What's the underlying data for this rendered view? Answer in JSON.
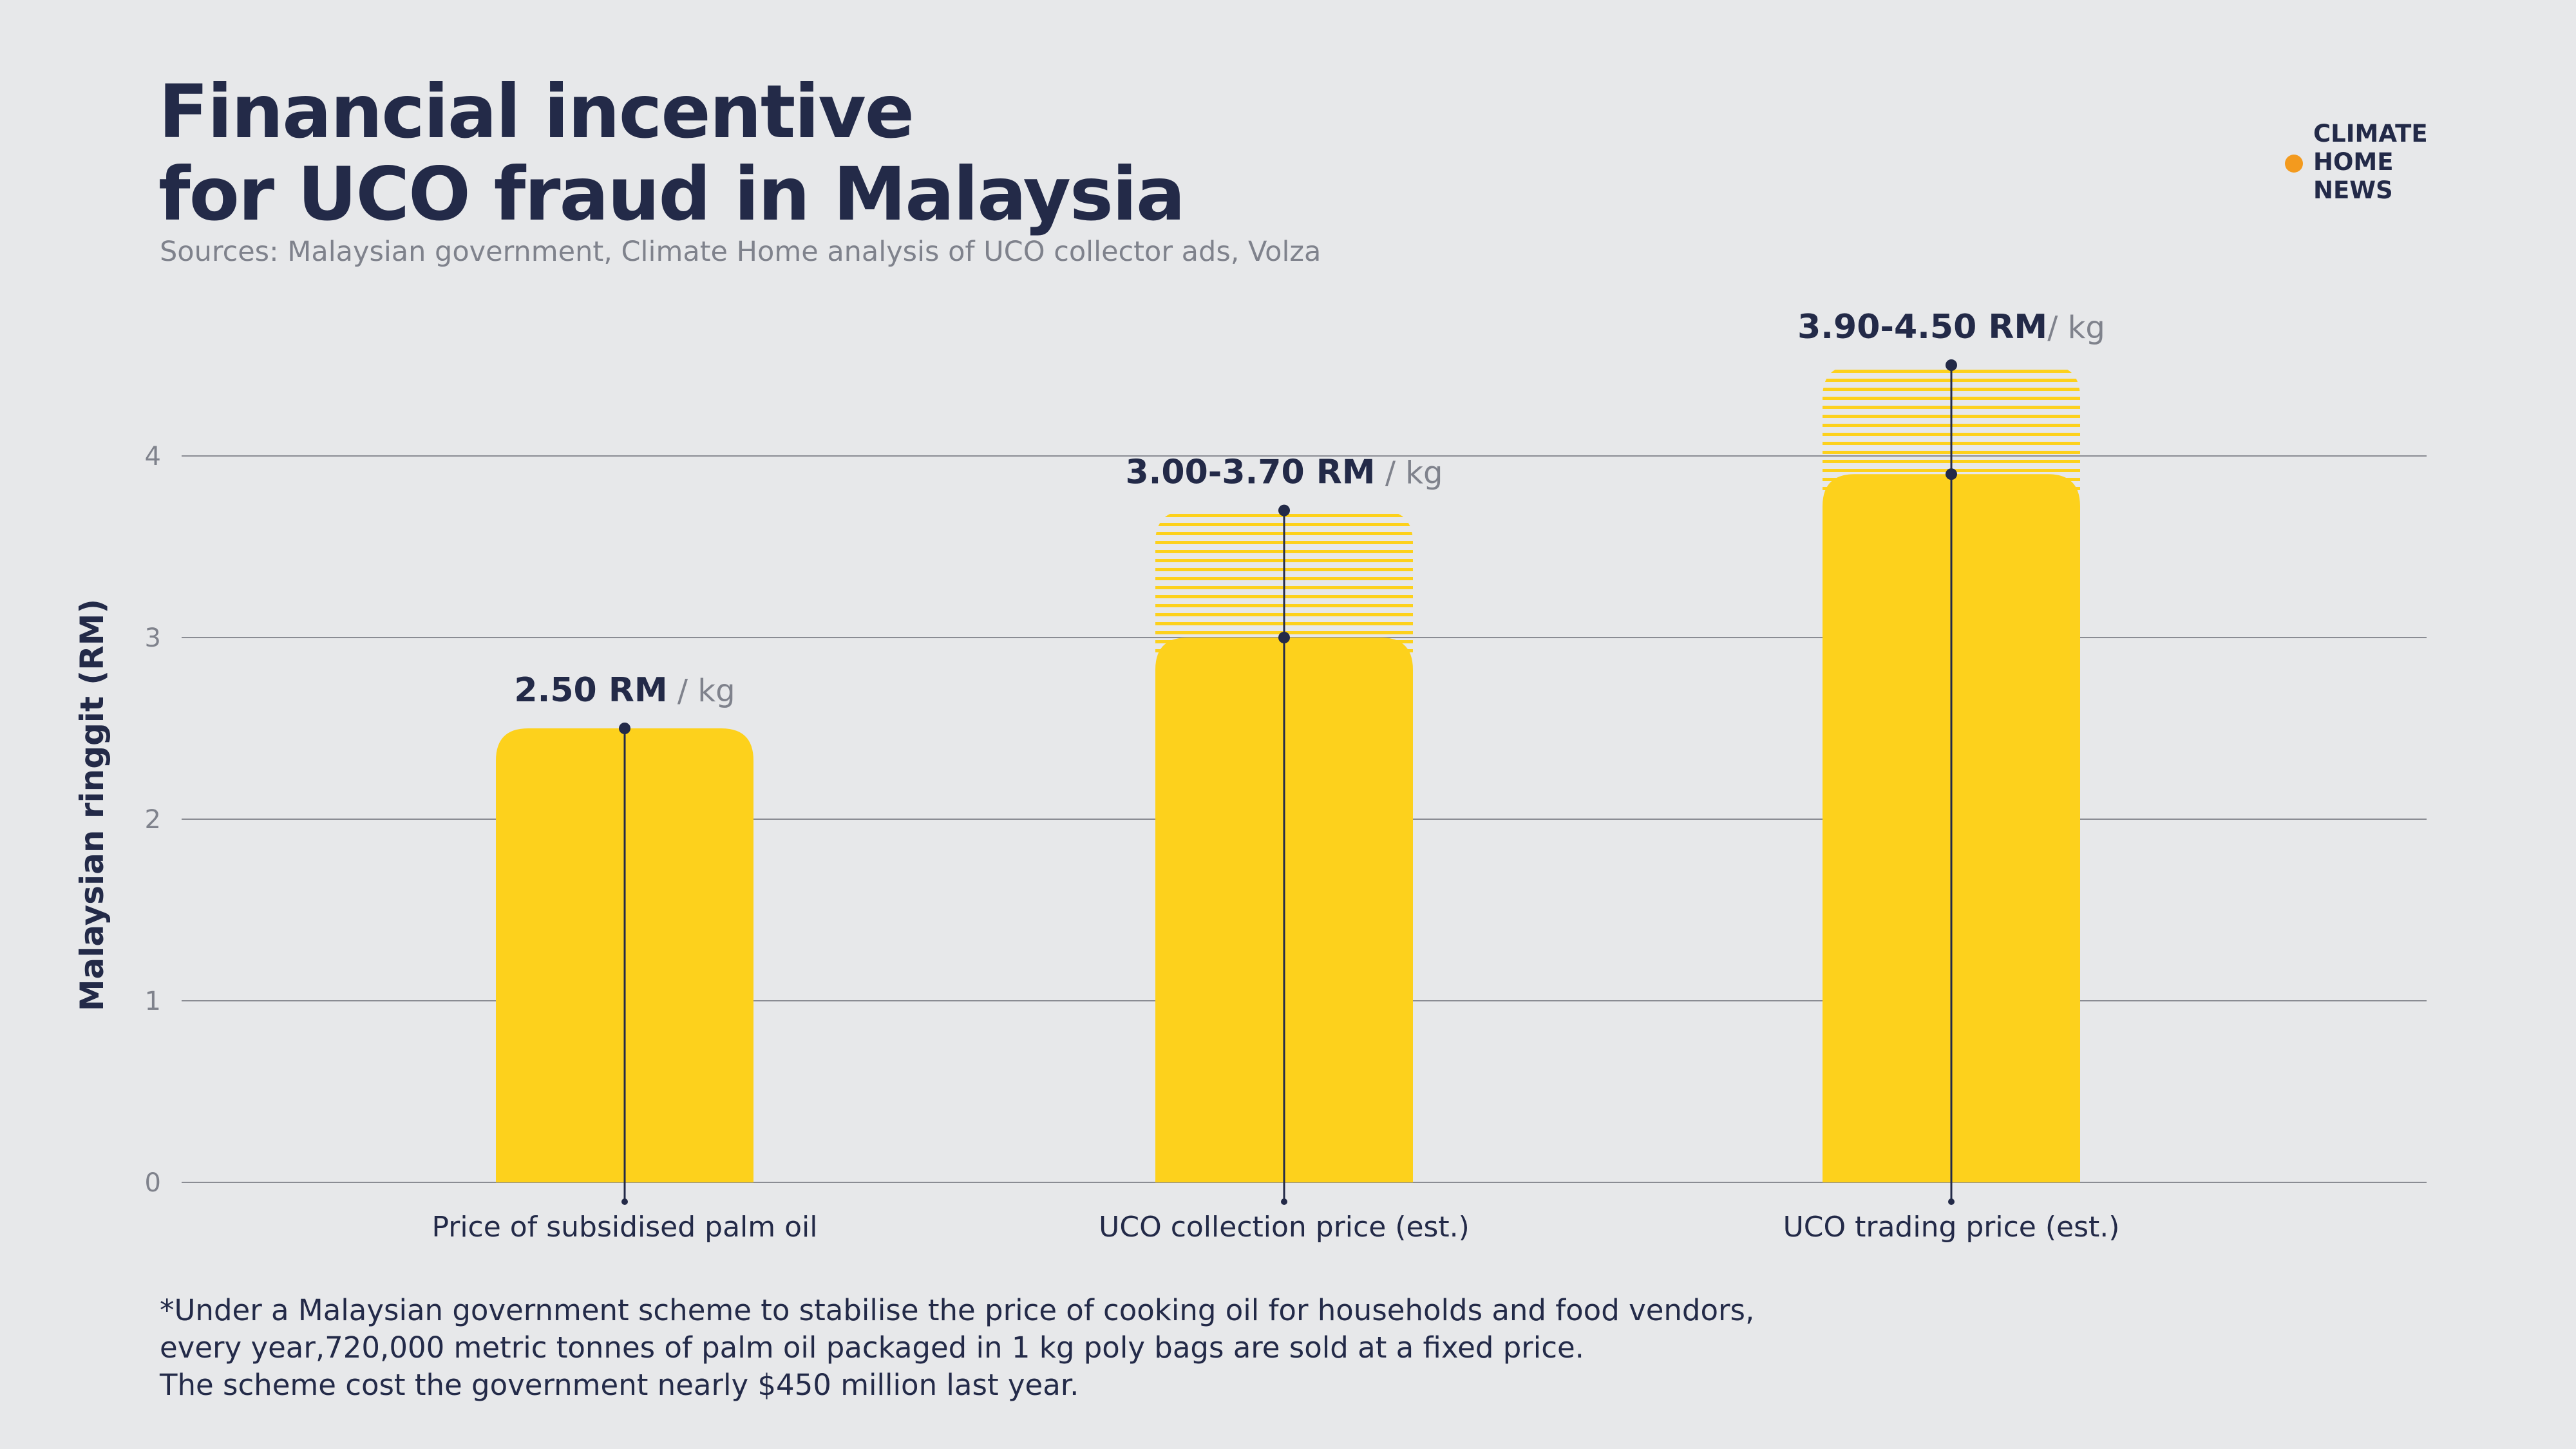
{
  "title_lines": [
    "Financial incentive",
    "for UCO fraud in Malaysia"
  ],
  "sources": "Sources: Malaysian government, Climate Home analysis of UCO collector ads, Volza",
  "logo": {
    "lines": [
      "CLIMATE",
      "HOME",
      "NEWS"
    ],
    "name": "climate-home-news-logo"
  },
  "footnote_lines": [
    "*Under a Malaysian government scheme to stabilise the price of cooking oil for households and food vendors,",
    "every year,720,000 metric tonnes of palm oil packaged in 1 kg poly bags are sold at a fixed price.",
    "The scheme cost the government nearly $450 million last year."
  ],
  "colors": {
    "bar": "#fdd11c",
    "hatch": "#fdd11c",
    "text": "#232a48",
    "grid": "#8a8c93",
    "axis_tick_text": "#7f828c",
    "logo_accent": "#f39a1e"
  },
  "chart_data": {
    "type": "bar",
    "ylabel": "Malaysian ringgit (RM)",
    "ylim": [
      0,
      4.5
    ],
    "yticks": [
      0,
      1,
      2,
      3,
      4
    ],
    "grid": true,
    "categories": [
      "Price of subsidised palm oil",
      "UCO collection price (est.)",
      "UCO trading price (est.)"
    ],
    "bars": [
      {
        "category": "Price of subsidised palm oil",
        "low": 2.5,
        "high": 2.5,
        "label_main": "2.50 RM",
        "label_unit": " / kg"
      },
      {
        "category": "UCO collection price (est.)",
        "low": 3.0,
        "high": 3.7,
        "label_main": "3.00-3.70 RM",
        "label_unit": " / kg"
      },
      {
        "category": "UCO trading price (est.)",
        "low": 3.9,
        "high": 4.5,
        "label_main": "3.90-4.50 RM",
        "label_unit": "/ kg"
      }
    ]
  }
}
